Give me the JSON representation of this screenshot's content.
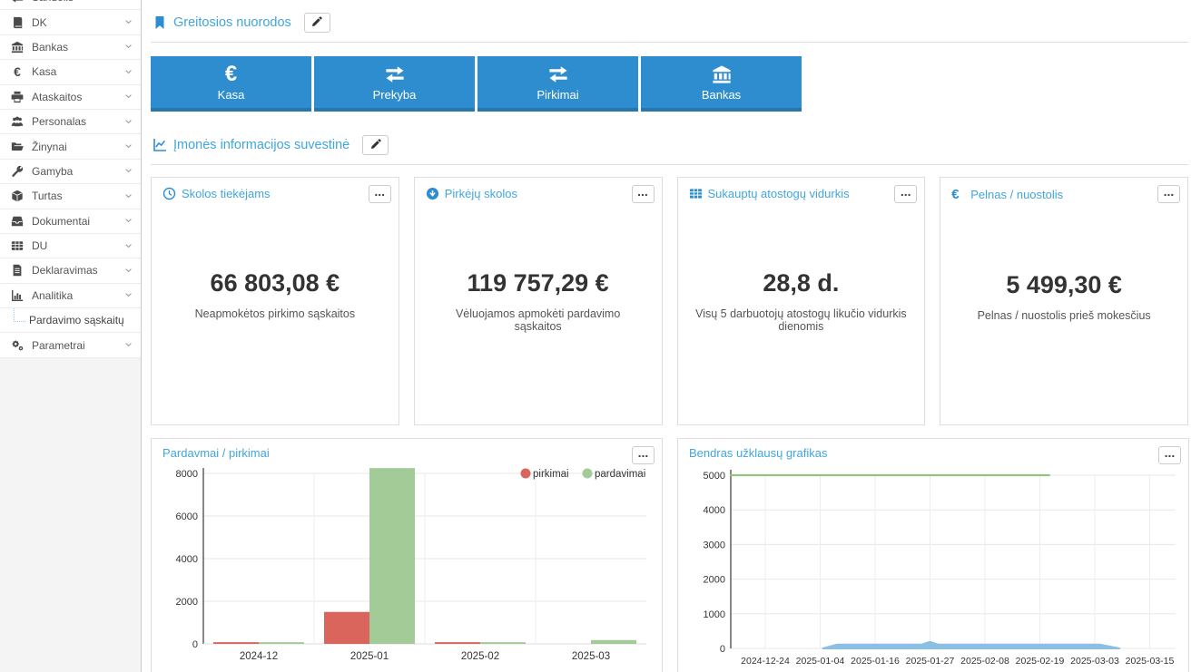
{
  "colors": {
    "link_blue": "#41a6dd",
    "icon_blue": "#2d8dd2",
    "button_blue": "#2e8dcf",
    "button_blue_dark": "#2677ae",
    "bar_red": "#d9655c",
    "bar_green": "#a3cb97",
    "line_green": "#94c47d",
    "area_blue": "#8cbfe4"
  },
  "sidebar": {
    "items": [
      {
        "label": "Sandelis",
        "icon": "exchange-icon",
        "partially_visible": true
      },
      {
        "label": "DK",
        "icon": "book-icon"
      },
      {
        "label": "Bankas",
        "icon": "bank-icon"
      },
      {
        "label": "Kasa",
        "icon": "euro-icon"
      },
      {
        "label": "Ataskaitos",
        "icon": "print-icon"
      },
      {
        "label": "Personalas",
        "icon": "users-icon"
      },
      {
        "label": "Žinynai",
        "icon": "folder-open-icon"
      },
      {
        "label": "Gamyba",
        "icon": "wrench-icon"
      },
      {
        "label": "Turtas",
        "icon": "cube-icon"
      },
      {
        "label": "Dokumentai",
        "icon": "inbox-icon"
      },
      {
        "label": "DU",
        "icon": "table-icon"
      },
      {
        "label": "Deklaravimas",
        "icon": "file-text-icon"
      },
      {
        "label": "Analitika",
        "icon": "bar-chart-icon"
      },
      {
        "label": "Pardavimo sąskaitų",
        "icon": null,
        "submenu": true
      },
      {
        "label": "Parametrai",
        "icon": "gears-icon"
      }
    ]
  },
  "quick_links": {
    "title": "Greitosios nuorodos",
    "icon": "bookmark-icon",
    "edit_icon": "pencil-icon",
    "buttons": [
      {
        "label": "Kasa",
        "icon": "euro-icon"
      },
      {
        "label": "Prekyba",
        "icon": "exchange-icon"
      },
      {
        "label": "Pirkimai",
        "icon": "exchange-icon"
      },
      {
        "label": "Bankas",
        "icon": "bank-icon"
      }
    ]
  },
  "summary": {
    "title": "Įmonės informacijos suvestinė",
    "icon": "line-chart-icon",
    "edit_icon": "pencil-icon",
    "menu_icon": "ellipsis-icon",
    "menu_glyph": "...",
    "cards": [
      {
        "title": "Skolos tiekėjams",
        "icon": "clock-icon",
        "value": "66 803,08 €",
        "subtitle": "Neapmokėtos pirkimo sąskaitos"
      },
      {
        "title": "Pirkėjų skolos",
        "icon": "arrow-circle-down-icon",
        "value": "119 757,29 €",
        "subtitle": "Vėluojamos apmokėti pardavimo sąskaitos"
      },
      {
        "title": "Sukauptų atostogų vidurkis",
        "icon": "table-icon",
        "value": "28,8 d.",
        "subtitle": "Visų 5 darbuotojų atostogų likučio vidurkis dienomis"
      },
      {
        "title": "Pelnas / nuostolis",
        "icon": "euro-icon",
        "value": "5 499,30 €",
        "subtitle": "Pelnas / nuostolis prieš mokesčius"
      }
    ]
  },
  "chart_data": [
    {
      "type": "bar",
      "title": "Pardavmai / pirkimai",
      "categories": [
        "2024-12",
        "2025-01",
        "2025-02",
        "2025-03"
      ],
      "series": [
        {
          "name": "pirkimai",
          "color": "#d9655c",
          "values": [
            80,
            1500,
            80,
            0
          ]
        },
        {
          "name": "pardavimai",
          "color": "#a3cb97",
          "values": [
            80,
            8250,
            80,
            180
          ]
        }
      ],
      "ylim": [
        0,
        8300
      ],
      "yticks": [
        0,
        2000,
        4000,
        6000,
        8000
      ],
      "legend_position": "top-right",
      "grid": true
    },
    {
      "type": "area",
      "title": "Bendras užklausų grafikas",
      "x_tick_labels": [
        "2024-12-24",
        "2025-01-04",
        "2025-01-16",
        "2025-01-27",
        "2025-02-08",
        "2025-02-19",
        "2025-03-03",
        "2025-03-15"
      ],
      "ylim": [
        0,
        5000
      ],
      "yticks": [
        0,
        1000,
        2000,
        3000,
        4000,
        5000
      ],
      "grid": true,
      "series": [
        {
          "name": "limit-line",
          "style": "line",
          "color": "#94c47d",
          "points": [
            [
              -0.62,
              5000
            ],
            [
              5.17,
              5000
            ]
          ]
        },
        {
          "name": "requests-area",
          "style": "area",
          "color": "#8cbfe4",
          "points": [
            [
              1.05,
              0
            ],
            [
              1.3,
              110
            ],
            [
              2.85,
              110
            ],
            [
              3.0,
              190
            ],
            [
              3.15,
              110
            ],
            [
              6.1,
              110
            ],
            [
              6.45,
              0
            ]
          ]
        }
      ]
    }
  ]
}
